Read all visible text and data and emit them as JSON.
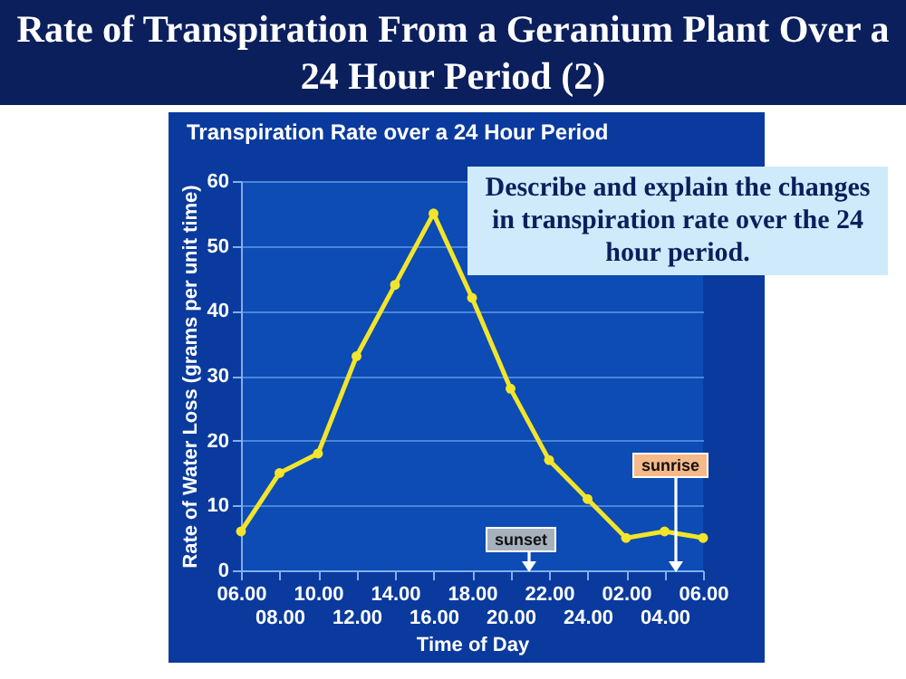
{
  "chart_data": {
    "type": "line",
    "title": "Rate of Transpiration From a Geranium Plant Over a 24 Hour Period (2)",
    "subtitle": "Transpiration Rate over a 24 Hour Period",
    "xlabel": "Time of Day",
    "ylabel": "Rate of Water Loss (grams per unit time)",
    "categories": [
      "06.00",
      "08.00",
      "10.00",
      "12.00",
      "14.00",
      "16.00",
      "18.00",
      "20.00",
      "22.00",
      "24.00",
      "02.00",
      "04.00",
      "06.00"
    ],
    "series": [
      {
        "color": "#f2e52a",
        "values": [
          6,
          15,
          18,
          33,
          44,
          55,
          42,
          28,
          17,
          11,
          5,
          6,
          5
        ]
      }
    ],
    "ylim": [
      0,
      60
    ],
    "yticks": [
      0,
      10,
      20,
      30,
      40,
      50,
      60
    ],
    "grid": "y",
    "marker": "circle",
    "annotations": [
      "Describe and explain the changes in transpiration rate over the 24 hour period.",
      "sunset",
      "sunrise"
    ]
  }
}
